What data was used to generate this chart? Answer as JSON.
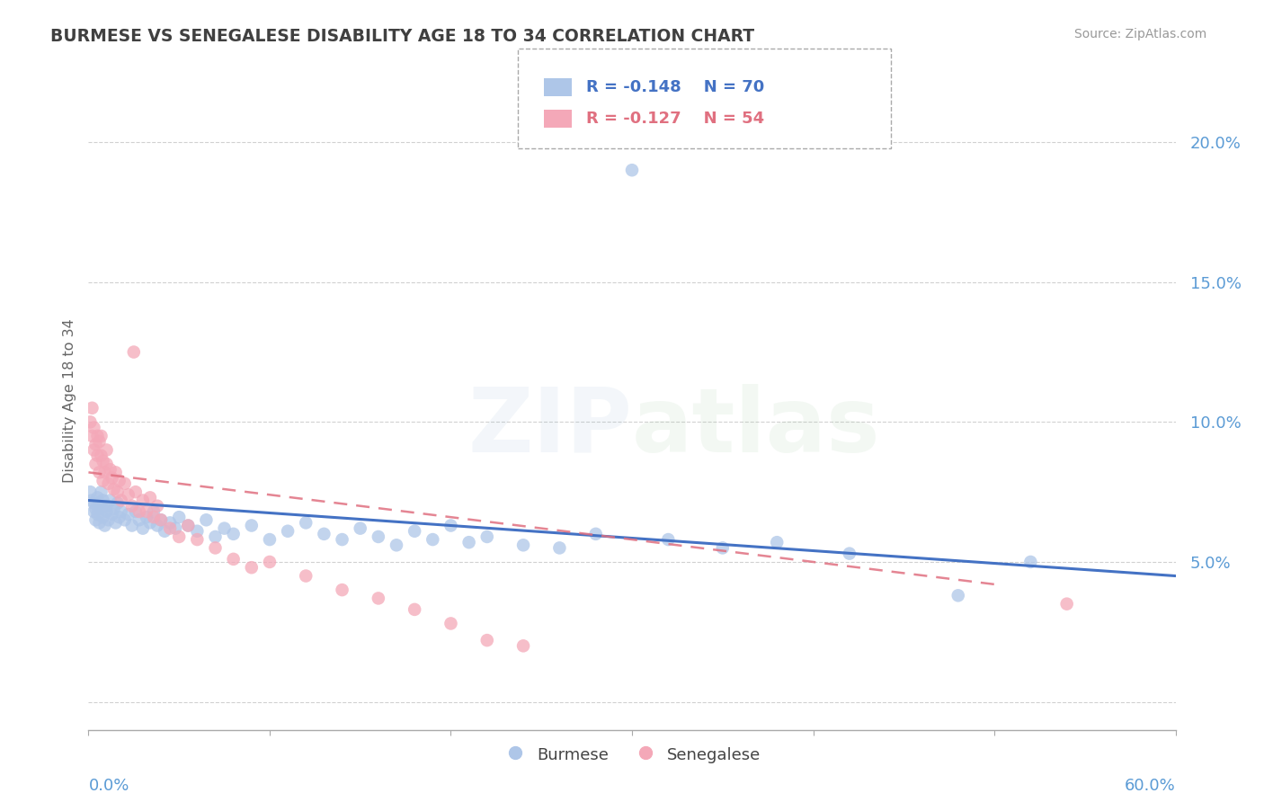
{
  "title": "BURMESE VS SENEGALESE DISABILITY AGE 18 TO 34 CORRELATION CHART",
  "source_text": "Source: ZipAtlas.com",
  "ylabel": "Disability Age 18 to 34",
  "yticks": [
    0.0,
    0.05,
    0.1,
    0.15,
    0.2
  ],
  "ytick_labels": [
    "",
    "5.0%",
    "10.0%",
    "15.0%",
    "20.0%"
  ],
  "xlim": [
    0.0,
    0.6
  ],
  "ylim": [
    -0.01,
    0.225
  ],
  "burmese_R": -0.148,
  "burmese_N": 70,
  "senegalese_R": -0.127,
  "senegalese_N": 54,
  "burmese_color": "#aec6e8",
  "senegalese_color": "#f4a8b8",
  "burmese_line_color": "#4472c4",
  "senegalese_line_color": "#e07080",
  "title_color": "#404040",
  "axis_label_color": "#5b9bd5",
  "grid_color": "#cccccc",
  "background_color": "#ffffff",
  "burmese_points": [
    [
      0.001,
      0.075
    ],
    [
      0.002,
      0.072
    ],
    [
      0.003,
      0.068
    ],
    [
      0.003,
      0.071
    ],
    [
      0.004,
      0.065
    ],
    [
      0.004,
      0.069
    ],
    [
      0.005,
      0.073
    ],
    [
      0.005,
      0.067
    ],
    [
      0.006,
      0.071
    ],
    [
      0.006,
      0.064
    ],
    [
      0.007,
      0.069
    ],
    [
      0.007,
      0.075
    ],
    [
      0.008,
      0.066
    ],
    [
      0.008,
      0.072
    ],
    [
      0.009,
      0.063
    ],
    [
      0.01,
      0.07
    ],
    [
      0.01,
      0.068
    ],
    [
      0.011,
      0.065
    ],
    [
      0.012,
      0.072
    ],
    [
      0.013,
      0.067
    ],
    [
      0.014,
      0.069
    ],
    [
      0.015,
      0.064
    ],
    [
      0.016,
      0.071
    ],
    [
      0.017,
      0.066
    ],
    [
      0.018,
      0.068
    ],
    [
      0.02,
      0.065
    ],
    [
      0.022,
      0.067
    ],
    [
      0.024,
      0.063
    ],
    [
      0.026,
      0.068
    ],
    [
      0.028,
      0.065
    ],
    [
      0.03,
      0.062
    ],
    [
      0.032,
      0.066
    ],
    [
      0.034,
      0.064
    ],
    [
      0.036,
      0.068
    ],
    [
      0.038,
      0.063
    ],
    [
      0.04,
      0.065
    ],
    [
      0.042,
      0.061
    ],
    [
      0.045,
      0.064
    ],
    [
      0.048,
      0.062
    ],
    [
      0.05,
      0.066
    ],
    [
      0.055,
      0.063
    ],
    [
      0.06,
      0.061
    ],
    [
      0.065,
      0.065
    ],
    [
      0.07,
      0.059
    ],
    [
      0.075,
      0.062
    ],
    [
      0.08,
      0.06
    ],
    [
      0.09,
      0.063
    ],
    [
      0.1,
      0.058
    ],
    [
      0.11,
      0.061
    ],
    [
      0.12,
      0.064
    ],
    [
      0.13,
      0.06
    ],
    [
      0.14,
      0.058
    ],
    [
      0.15,
      0.062
    ],
    [
      0.16,
      0.059
    ],
    [
      0.17,
      0.056
    ],
    [
      0.18,
      0.061
    ],
    [
      0.19,
      0.058
    ],
    [
      0.2,
      0.063
    ],
    [
      0.21,
      0.057
    ],
    [
      0.22,
      0.059
    ],
    [
      0.24,
      0.056
    ],
    [
      0.26,
      0.055
    ],
    [
      0.28,
      0.06
    ],
    [
      0.3,
      0.19
    ],
    [
      0.32,
      0.058
    ],
    [
      0.35,
      0.055
    ],
    [
      0.38,
      0.057
    ],
    [
      0.42,
      0.053
    ],
    [
      0.48,
      0.038
    ],
    [
      0.52,
      0.05
    ]
  ],
  "senegalese_points": [
    [
      0.001,
      0.1
    ],
    [
      0.002,
      0.095
    ],
    [
      0.002,
      0.105
    ],
    [
      0.003,
      0.09
    ],
    [
      0.003,
      0.098
    ],
    [
      0.004,
      0.085
    ],
    [
      0.004,
      0.092
    ],
    [
      0.005,
      0.088
    ],
    [
      0.005,
      0.095
    ],
    [
      0.006,
      0.082
    ],
    [
      0.006,
      0.093
    ],
    [
      0.007,
      0.088
    ],
    [
      0.007,
      0.095
    ],
    [
      0.008,
      0.079
    ],
    [
      0.008,
      0.086
    ],
    [
      0.009,
      0.082
    ],
    [
      0.01,
      0.09
    ],
    [
      0.01,
      0.085
    ],
    [
      0.011,
      0.078
    ],
    [
      0.012,
      0.083
    ],
    [
      0.013,
      0.08
    ],
    [
      0.014,
      0.076
    ],
    [
      0.015,
      0.082
    ],
    [
      0.016,
      0.075
    ],
    [
      0.017,
      0.079
    ],
    [
      0.018,
      0.072
    ],
    [
      0.02,
      0.078
    ],
    [
      0.022,
      0.074
    ],
    [
      0.024,
      0.07
    ],
    [
      0.026,
      0.075
    ],
    [
      0.028,
      0.068
    ],
    [
      0.03,
      0.072
    ],
    [
      0.032,
      0.068
    ],
    [
      0.034,
      0.073
    ],
    [
      0.036,
      0.066
    ],
    [
      0.038,
      0.07
    ],
    [
      0.04,
      0.065
    ],
    [
      0.045,
      0.062
    ],
    [
      0.05,
      0.059
    ],
    [
      0.055,
      0.063
    ],
    [
      0.06,
      0.058
    ],
    [
      0.07,
      0.055
    ],
    [
      0.08,
      0.051
    ],
    [
      0.09,
      0.048
    ],
    [
      0.1,
      0.05
    ],
    [
      0.12,
      0.045
    ],
    [
      0.14,
      0.04
    ],
    [
      0.16,
      0.037
    ],
    [
      0.18,
      0.033
    ],
    [
      0.2,
      0.028
    ],
    [
      0.22,
      0.022
    ],
    [
      0.24,
      0.02
    ],
    [
      0.025,
      0.125
    ],
    [
      0.54,
      0.035
    ]
  ],
  "burmese_trend": [
    0.0,
    0.6
  ],
  "burmese_trend_y": [
    0.072,
    0.045
  ],
  "senegalese_trend": [
    0.0,
    0.5
  ],
  "senegalese_trend_y": [
    0.082,
    0.042
  ]
}
